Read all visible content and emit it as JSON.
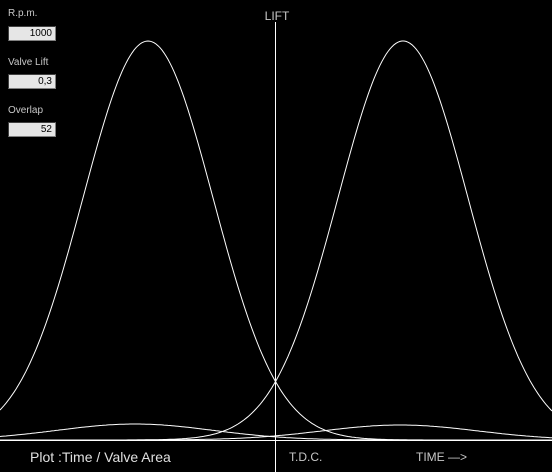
{
  "fields": [
    {
      "label": "R.p.m.",
      "value": 1000
    },
    {
      "label": "Valve Lift",
      "value": "0,3"
    },
    {
      "label": "Overlap",
      "value": 52
    }
  ],
  "plot": {
    "y_label": "LIFT",
    "title": "Plot :Time / Valve Area",
    "center_label": "T.D.C.",
    "x_label": "TIME —>"
  }
}
